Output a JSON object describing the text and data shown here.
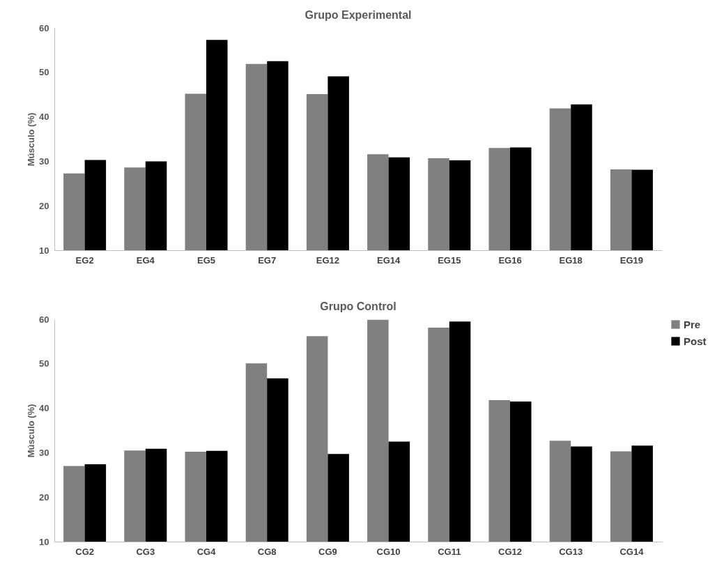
{
  "chart_data": [
    {
      "type": "bar",
      "title": "Grupo Experimental",
      "ylabel": "Músculo (%)",
      "categories": [
        "EG2",
        "EG4",
        "EG5",
        "EG7",
        "EG12",
        "EG14",
        "EG15",
        "EG16",
        "EG18",
        "EG19"
      ],
      "series": [
        {
          "color": "#808080",
          "values": [
            27.3,
            28.6,
            45.2,
            51.9,
            45.1,
            31.6,
            30.7,
            33.0,
            41.9,
            28.2
          ]
        },
        {
          "color": "#000000",
          "values": [
            30.3,
            30.0,
            57.3,
            52.5,
            49.1,
            30.9,
            30.2,
            33.1,
            42.8,
            28.1
          ]
        }
      ],
      "ylim": [
        10,
        60
      ],
      "yticks": [
        10,
        20,
        30,
        40,
        50,
        60
      ],
      "grid": false
    },
    {
      "type": "bar",
      "title": "Grupo Control",
      "ylabel": "Músculo (%)",
      "categories": [
        "CG2",
        "CG3",
        "CG4",
        "CG8",
        "CG9",
        "CG10",
        "CG11",
        "CG12",
        "CG13",
        "CG14"
      ],
      "series": [
        {
          "name": "Pre",
          "color": "#808080",
          "values": [
            27.0,
            30.5,
            30.2,
            50.1,
            56.2,
            59.9,
            58.1,
            41.8,
            32.7,
            30.3
          ]
        },
        {
          "name": "Post",
          "color": "#000000",
          "values": [
            27.4,
            30.9,
            30.4,
            46.7,
            29.7,
            32.5,
            59.5,
            41.5,
            31.4,
            31.6
          ]
        }
      ],
      "ylim": [
        10,
        60
      ],
      "yticks": [
        10,
        20,
        30,
        40,
        50,
        60
      ],
      "grid": false,
      "legend": "right"
    }
  ]
}
